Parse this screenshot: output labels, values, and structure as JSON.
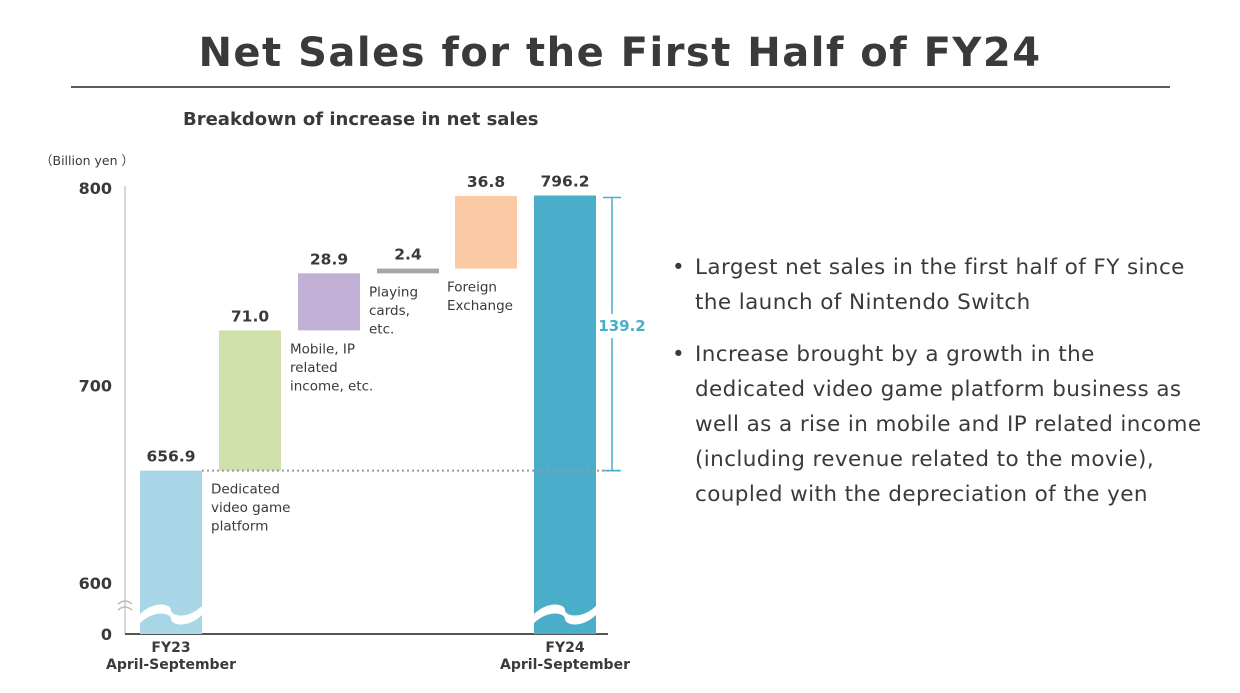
{
  "page": {
    "title": "Net Sales for the First Half of FY24",
    "bullets": [
      "Largest net sales in the first half of FY since the launch of Nintendo Switch",
      "Increase brought by a growth in the dedicated video game platform business as well as a rise in mobile and IP related income (including revenue related to the movie), coupled with the depreciation of the yen"
    ]
  },
  "chart_data": {
    "type": "bar",
    "subtype": "waterfall",
    "title": "Breakdown of increase in net sales",
    "unit": "（Billion yen ）",
    "y_ticks": [
      0,
      600,
      700,
      800
    ],
    "ylim": [
      600,
      800
    ],
    "axis_break": true,
    "grid": false,
    "categories": [
      {
        "label": [
          "FY23",
          "April-September"
        ],
        "kind": "total",
        "value": 656.9,
        "value_label": "656.9",
        "color": "#a8d6e6"
      },
      {
        "label": [
          "Dedicated",
          "video game",
          "platform"
        ],
        "kind": "increase",
        "value": 71.0,
        "value_label": "71.0",
        "color": "#cfe0ab"
      },
      {
        "label": [
          "Mobile, IP",
          "related",
          "income, etc."
        ],
        "kind": "increase",
        "value": 28.9,
        "value_label": "28.9",
        "color": "#c2afd5"
      },
      {
        "label": [
          "Playing",
          "cards,",
          "etc."
        ],
        "kind": "increase",
        "value": 2.4,
        "value_label": "2.4",
        "color": "#a6a6a6"
      },
      {
        "label": [
          "Foreign",
          "Exchange"
        ],
        "kind": "increase",
        "value": 36.8,
        "value_label": "36.8",
        "color": "#fbc9a3"
      },
      {
        "label": [
          "FY24",
          "April-September"
        ],
        "kind": "total",
        "value": 796.2,
        "value_label": "796.2",
        "color": "#4aaecb"
      }
    ],
    "difference": {
      "value": 139.2,
      "label": "139.2",
      "color": "#4aaecb"
    }
  }
}
